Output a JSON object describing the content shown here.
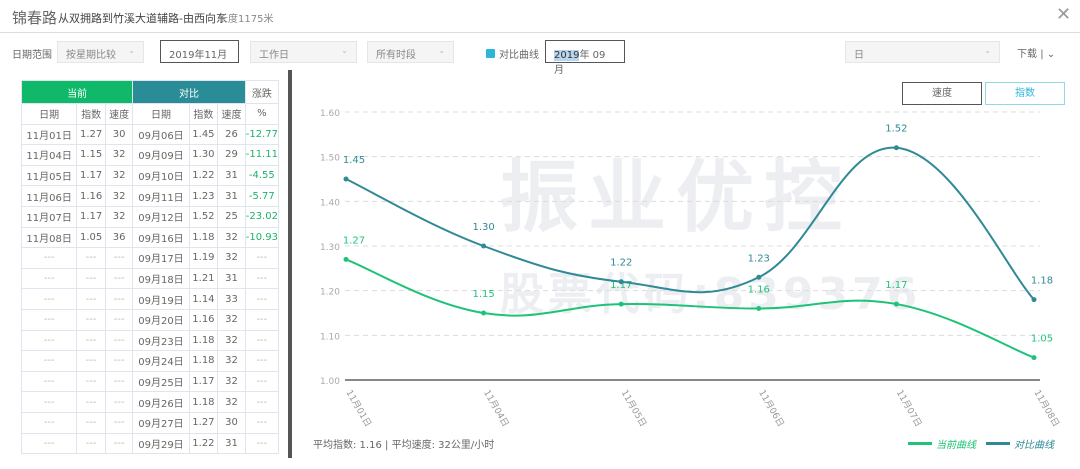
{
  "header": {
    "title": "锦春路",
    "route": "从双拥路到竹溪大道辅路-由西向东",
    "length": "长度1175米",
    "close_icon": "close-icon"
  },
  "filters": {
    "date_range_label": "日期范围",
    "compare_mode": "按星期比较",
    "month": "2019年11月",
    "day_type": "工作日",
    "period": "所有时段",
    "compare_checkbox_label": "对比曲线",
    "compare_checked": true,
    "compare_month_year": "2019",
    "compare_month_rest": "年 09 月",
    "granularity": "日",
    "download": "下载",
    "download_sep": "|"
  },
  "toggle": {
    "speed": "速度",
    "index": "指数",
    "active": "指数"
  },
  "table": {
    "group_current": "当前",
    "group_compare": "对比",
    "change": "涨跌",
    "columns": [
      "日期",
      "指数",
      "速度",
      "日期",
      "指数",
      "速度",
      "%"
    ],
    "rows": [
      [
        "11月01日",
        "1.27",
        "30",
        "09月06日",
        "1.45",
        "26",
        "-12.77"
      ],
      [
        "11月04日",
        "1.15",
        "32",
        "09月09日",
        "1.30",
        "29",
        "-11.11"
      ],
      [
        "11月05日",
        "1.17",
        "32",
        "09月10日",
        "1.22",
        "31",
        "-4.55"
      ],
      [
        "11月06日",
        "1.16",
        "32",
        "09月11日",
        "1.23",
        "31",
        "-5.77"
      ],
      [
        "11月07日",
        "1.17",
        "32",
        "09月12日",
        "1.52",
        "25",
        "-23.02"
      ],
      [
        "11月08日",
        "1.05",
        "36",
        "09月16日",
        "1.18",
        "32",
        "-10.93"
      ],
      [
        "---",
        "---",
        "---",
        "09月17日",
        "1.19",
        "32",
        "---"
      ],
      [
        "---",
        "---",
        "---",
        "09月18日",
        "1.21",
        "31",
        "---"
      ],
      [
        "---",
        "---",
        "---",
        "09月19日",
        "1.14",
        "33",
        "---"
      ],
      [
        "---",
        "---",
        "---",
        "09月20日",
        "1.16",
        "32",
        "---"
      ],
      [
        "---",
        "---",
        "---",
        "09月23日",
        "1.18",
        "32",
        "---"
      ],
      [
        "---",
        "---",
        "---",
        "09月24日",
        "1.18",
        "32",
        "---"
      ],
      [
        "---",
        "---",
        "---",
        "09月25日",
        "1.17",
        "32",
        "---"
      ],
      [
        "---",
        "---",
        "---",
        "09月26日",
        "1.18",
        "32",
        "---"
      ],
      [
        "---",
        "---",
        "---",
        "09月27日",
        "1.27",
        "30",
        "---"
      ],
      [
        "---",
        "---",
        "---",
        "09月29日",
        "1.22",
        "31",
        "---"
      ]
    ]
  },
  "summary": {
    "avg_index": "平均指数: 1.16",
    "sep": "|",
    "avg_speed": "平均速度: 32公里/小时"
  },
  "watermark": {
    "line1": "振业优控",
    "line2": "股票代码:839376"
  },
  "chart_data": {
    "type": "line",
    "categories": [
      "11月01日",
      "11月04日",
      "11月05日",
      "11月06日",
      "11月07日",
      "11月08日"
    ],
    "series": [
      {
        "name": "当前曲线",
        "color": "#1ec378",
        "values": [
          1.27,
          1.15,
          1.17,
          1.16,
          1.17,
          1.05
        ]
      },
      {
        "name": "对比曲线",
        "color": "#2f8a96",
        "values": [
          1.45,
          1.3,
          1.22,
          1.23,
          1.52,
          1.18
        ]
      }
    ],
    "yticks": [
      "1.00",
      "1.10",
      "1.20",
      "1.30",
      "1.40",
      "1.50",
      "1.60"
    ],
    "ylim": [
      1.0,
      1.6
    ],
    "grid": true,
    "smooth": true,
    "legend": "bottom-right"
  }
}
